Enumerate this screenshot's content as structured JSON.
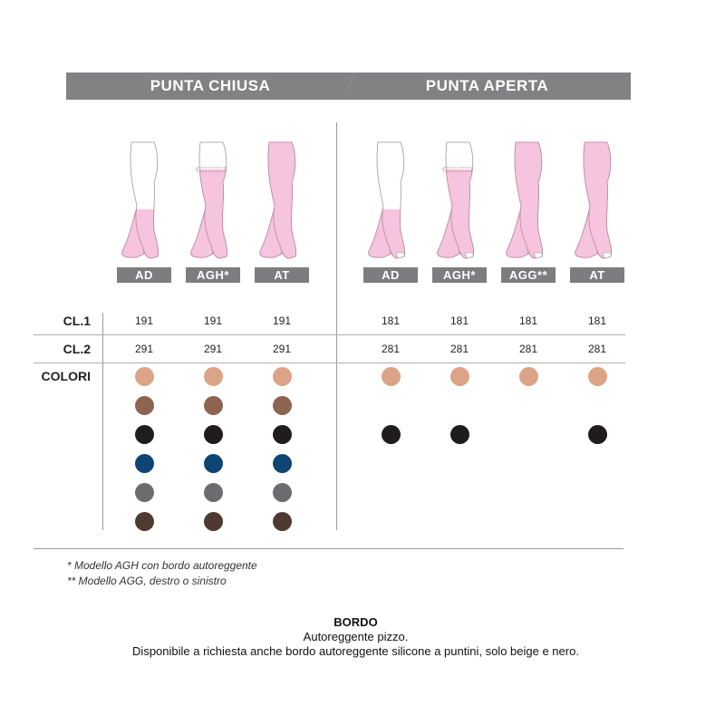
{
  "header": {
    "left": "PUNTA CHIUSA",
    "right": "PUNTA APERTA"
  },
  "columns": [
    {
      "label": "AD",
      "group": "chiusa",
      "coverage": "below-knee",
      "open_toe": false,
      "cl1": "191",
      "cl2": "291",
      "colors": [
        "beige",
        "brown",
        "black",
        "navy",
        "gray",
        "dark-brown"
      ]
    },
    {
      "label": "AGH*",
      "group": "chiusa",
      "coverage": "thigh",
      "open_toe": false,
      "cl1": "191",
      "cl2": "291",
      "colors": [
        "beige",
        "brown",
        "black",
        "navy",
        "gray",
        "dark-brown"
      ]
    },
    {
      "label": "AT",
      "group": "chiusa",
      "coverage": "full",
      "open_toe": false,
      "cl1": "191",
      "cl2": "291",
      "colors": [
        "beige",
        "brown",
        "black",
        "navy",
        "gray",
        "dark-brown"
      ]
    },
    {
      "label": "AD",
      "group": "aperta",
      "coverage": "below-knee",
      "open_toe": true,
      "cl1": "181",
      "cl2": "281",
      "colors": [
        "beige",
        "black"
      ]
    },
    {
      "label": "AGH*",
      "group": "aperta",
      "coverage": "thigh",
      "open_toe": true,
      "cl1": "181",
      "cl2": "281",
      "colors": [
        "beige",
        "black"
      ]
    },
    {
      "label": "AGG**",
      "group": "aperta",
      "coverage": "full",
      "open_toe": true,
      "cl1": "181",
      "cl2": "281",
      "colors": [
        "beige"
      ]
    },
    {
      "label": "AT",
      "group": "aperta",
      "coverage": "full",
      "open_toe": true,
      "cl1": "181",
      "cl2": "281",
      "colors": [
        "beige",
        "black"
      ]
    }
  ],
  "rows": {
    "cl1": "CL.1",
    "cl2": "CL.2",
    "colori": "COLORI"
  },
  "color_palette": {
    "beige": "#dba487",
    "brown": "#8c6450",
    "black": "#1e1c1d",
    "navy": "#0e4573",
    "gray": "#6c6c6e",
    "dark-brown": "#4f3a31"
  },
  "stocking_color": "#f6c4df",
  "footnotes": [
    "*  Modello AGH con bordo autoreggente",
    "**  Modello AGG, destro o sinistro"
  ],
  "bordo": {
    "title": "BORDO",
    "line1": "Autoreggente pizzo.",
    "line2": "Disponibile a richiesta anche bordo autoreggente silicone a puntini, solo beige e nero."
  }
}
